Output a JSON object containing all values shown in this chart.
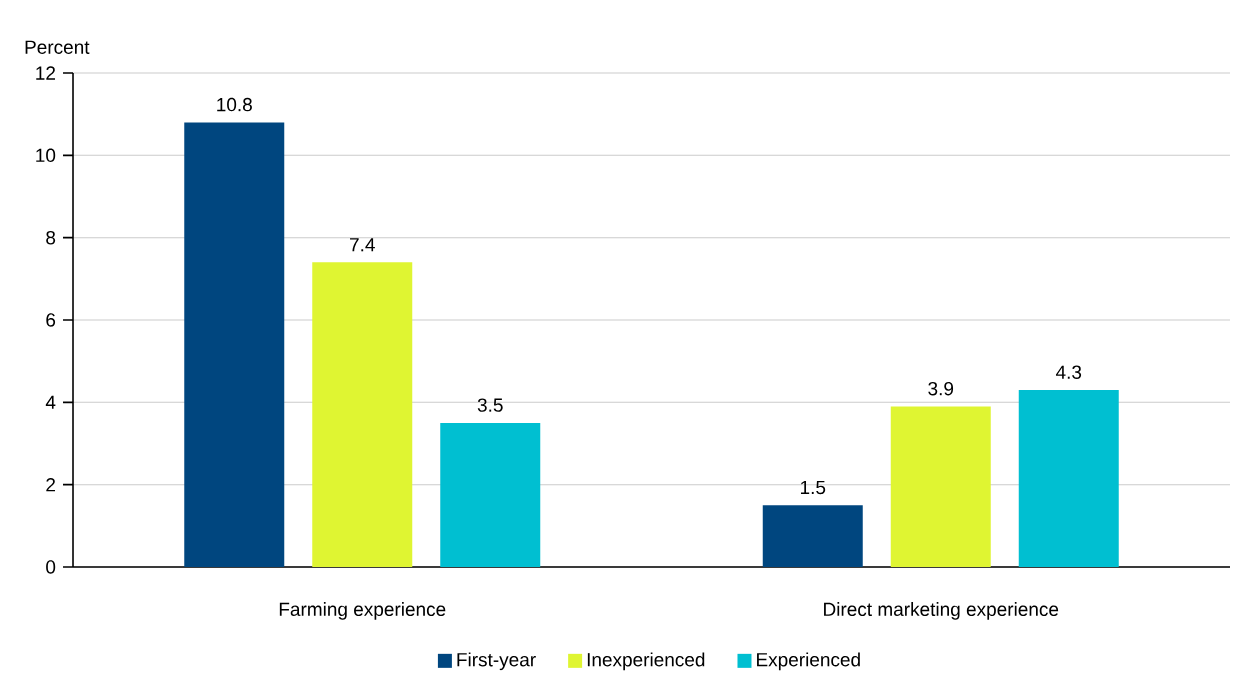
{
  "chart_data": {
    "type": "bar",
    "ylabel": "Percent",
    "categories": [
      "Farming experience",
      "Direct marketing experience"
    ],
    "series": [
      {
        "name": "First-year",
        "color": "#00467f",
        "values": [
          10.8,
          1.5
        ]
      },
      {
        "name": "Inexperienced",
        "color": "#dff532",
        "values": [
          7.4,
          3.9
        ]
      },
      {
        "name": "Experienced",
        "color": "#00bfd1",
        "values": [
          3.5,
          4.3
        ]
      }
    ],
    "ylim": [
      0,
      12
    ],
    "yticks": [
      0,
      2,
      4,
      6,
      8,
      10,
      12
    ],
    "grid": "y",
    "legend": "bottom",
    "data_labels": true
  }
}
